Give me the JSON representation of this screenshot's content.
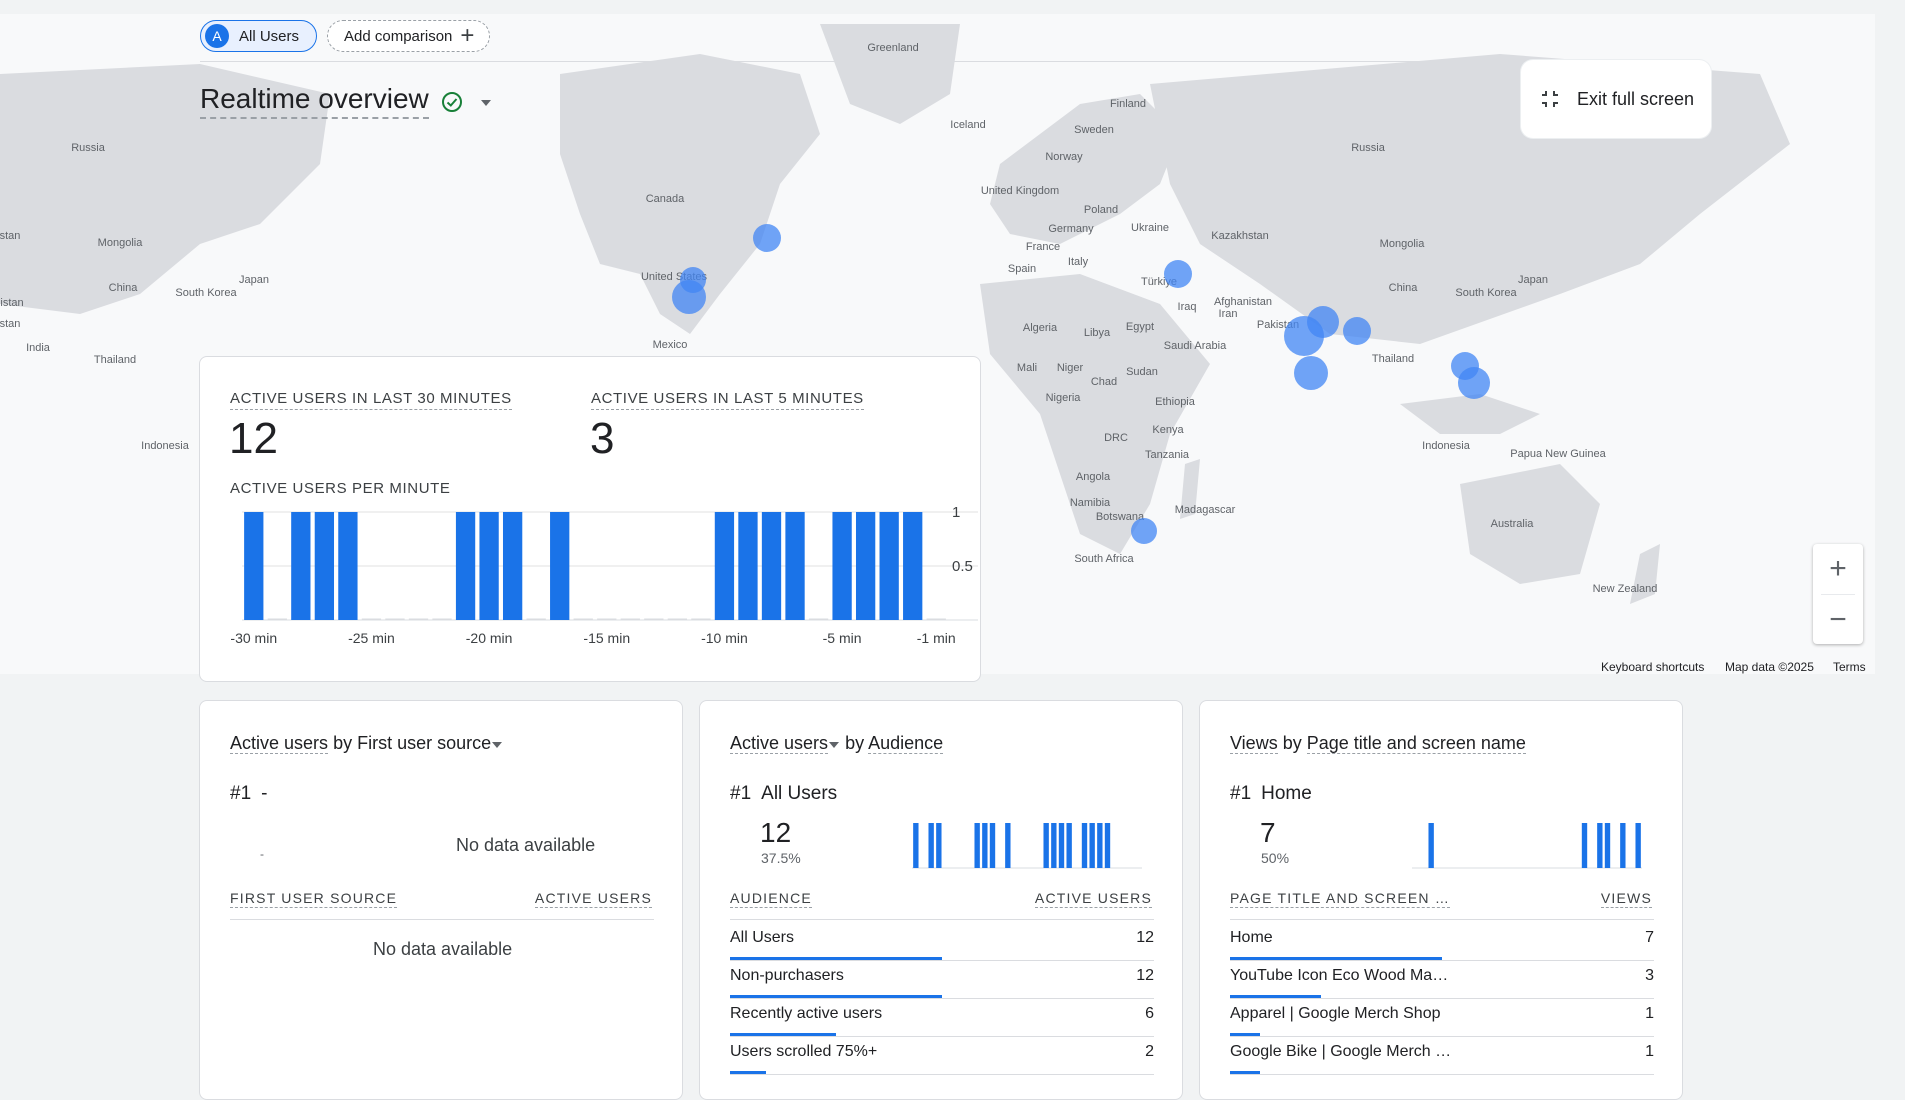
{
  "chips": {
    "users_avatar": "A",
    "users_label": "All Users",
    "compare_label": "Add comparison"
  },
  "header": {
    "title": "Realtime overview",
    "exit_label": "Exit full screen"
  },
  "map": {
    "labels": [
      "Greenland",
      "Finland",
      "Sweden",
      "Norway",
      "Iceland",
      "Russia",
      "Russia",
      "United Kingdom",
      "Poland",
      "Germany",
      "Ukraine",
      "France",
      "Italy",
      "Spain",
      "Kazakhstan",
      "Mongolia",
      "Mongolia",
      "Türkiye",
      "Iraq",
      "Iran",
      "Afghanistan",
      "Pakistan",
      "China",
      "China",
      "Japan",
      "Japan",
      "South Korea",
      "South Korea",
      "Canada",
      "United States",
      "Mexico",
      "India",
      "Thailand",
      "Thailand",
      "Algeria",
      "Libya",
      "Egypt",
      "Saudi Arabia",
      "Mali",
      "Niger",
      "Chad",
      "Sudan",
      "Nigeria",
      "Ethiopia",
      "Kenya",
      "DRC",
      "Tanzania",
      "Angola",
      "Namibia",
      "Botswana",
      "Madagascar",
      "South Africa",
      "Indonesia",
      "Indonesia",
      "Papua New Guinea",
      "Australia",
      "New Zealand",
      "stan",
      "istan",
      "stan"
    ],
    "footer_shortcuts": "Keyboard shortcuts",
    "footer_data": "Map data ©2025",
    "footer_terms": "Terms"
  },
  "overview": {
    "label_30": "ACTIVE USERS IN LAST 30 MINUTES",
    "value_30": "12",
    "label_5": "ACTIVE USERS IN LAST 5 MINUTES",
    "value_5": "3",
    "label_per_minute": "ACTIVE USERS PER MINUTE"
  },
  "chart_data": {
    "type": "bar",
    "title": "ACTIVE USERS PER MINUTE",
    "categories": [
      "-30 min",
      "-29 min",
      "-28 min",
      "-27 min",
      "-26 min",
      "-25 min",
      "-24 min",
      "-23 min",
      "-22 min",
      "-21 min",
      "-20 min",
      "-19 min",
      "-18 min",
      "-17 min",
      "-16 min",
      "-15 min",
      "-14 min",
      "-13 min",
      "-12 min",
      "-11 min",
      "-10 min",
      "-9 min",
      "-8 min",
      "-7 min",
      "-6 min",
      "-5 min",
      "-4 min",
      "-3 min",
      "-2 min",
      "-1 min"
    ],
    "values": [
      1,
      0,
      1,
      1,
      1,
      0,
      0,
      0,
      0,
      1,
      1,
      1,
      0,
      1,
      0,
      0,
      0,
      0,
      0,
      0,
      1,
      1,
      1,
      1,
      0,
      1,
      1,
      1,
      1,
      0
    ],
    "x_tick_labels": [
      "-30 min",
      "-25 min",
      "-20 min",
      "-15 min",
      "-10 min",
      "-5 min",
      "-1 min"
    ],
    "y_tick_labels": [
      "1",
      "0.5"
    ],
    "ylim": [
      0,
      1
    ],
    "grid": true,
    "color": "#1a73e8"
  },
  "cards": {
    "source": {
      "title_metric": "Active users",
      "title_by": "by",
      "title_dim": "First user source",
      "rank": "#1",
      "rank_value": "-",
      "small_dash": "-",
      "nodata_top": "No data available",
      "col1": "FIRST USER SOURCE",
      "col2": "ACTIVE USERS",
      "nodata_table": "No data available"
    },
    "audience": {
      "title_metric": "Active users",
      "title_by": "by",
      "title_dim": "Audience",
      "rank": "#1",
      "rank_value": "All Users",
      "big": "12",
      "pct": "37.5%",
      "col1": "AUDIENCE",
      "col2": "ACTIVE USERS",
      "rows": [
        {
          "label": "All Users",
          "value": "12",
          "share": 1.0
        },
        {
          "label": "Non-purchasers",
          "value": "12",
          "share": 1.0
        },
        {
          "label": "Recently active users",
          "value": "6",
          "share": 0.5
        },
        {
          "label": "Users scrolled 75%+",
          "value": "2",
          "share": 0.17
        }
      ]
    },
    "pages": {
      "title_metric": "Views",
      "title_by": "by",
      "title_dim": "Page title and screen name",
      "rank": "#1",
      "rank_value": "Home",
      "big": "7",
      "pct": "50%",
      "col1": "PAGE TITLE AND SCREEN …",
      "col2": "VIEWS",
      "rows": [
        {
          "label": "Home",
          "value": "7",
          "share": 1.0
        },
        {
          "label": "YouTube Icon Eco Wood Ma…",
          "value": "3",
          "share": 0.43
        },
        {
          "label": "Apparel | Google Merch Shop",
          "value": "1",
          "share": 0.14
        },
        {
          "label": "Google Bike | Google Merch …",
          "value": "1",
          "share": 0.14
        }
      ]
    }
  },
  "sparklines": {
    "audience": [
      1,
      0,
      1,
      1,
      0,
      0,
      0,
      0,
      1,
      1,
      1,
      0,
      1,
      0,
      0,
      0,
      0,
      1,
      1,
      1,
      1,
      0,
      1,
      1,
      1,
      1,
      0,
      0,
      0,
      0
    ],
    "pages": [
      0,
      0,
      1,
      0,
      0,
      0,
      0,
      0,
      0,
      0,
      0,
      0,
      0,
      0,
      0,
      0,
      0,
      0,
      0,
      0,
      0,
      0,
      1,
      0,
      1,
      1,
      0,
      1,
      0,
      1
    ]
  },
  "colors": {
    "accent": "#1a73e8",
    "map_dot": "#4285f4",
    "land": "#dadce0",
    "ocean": "#f8f9fa"
  }
}
